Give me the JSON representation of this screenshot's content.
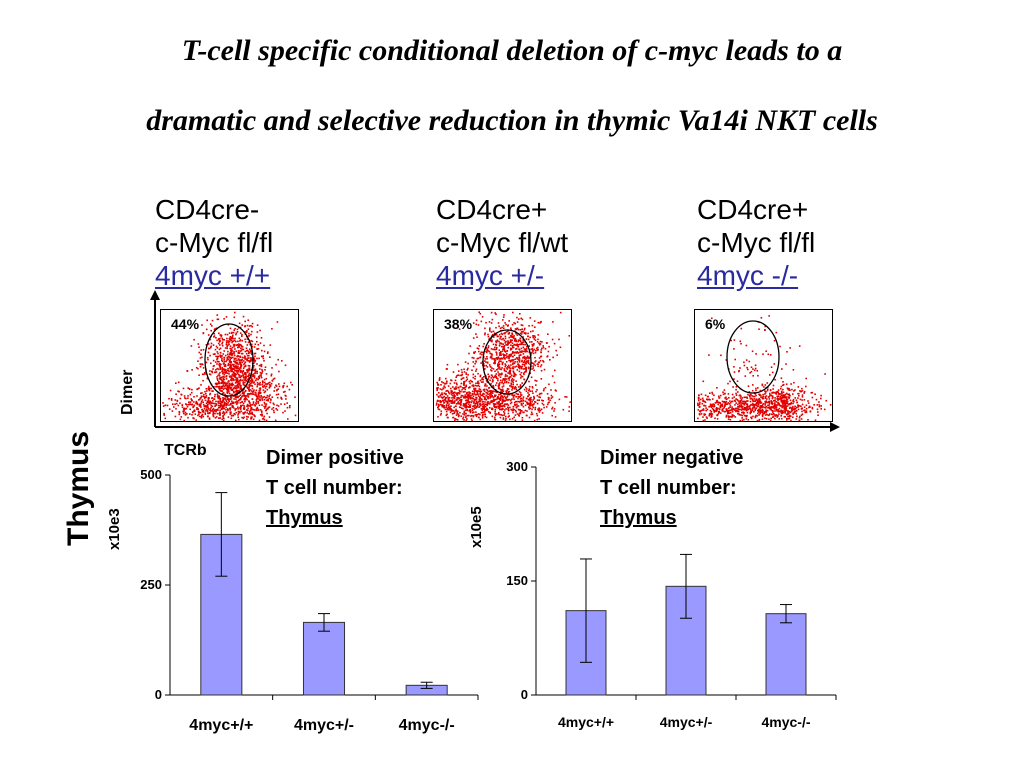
{
  "title": {
    "line1": "T-cell specific conditional deletion of c-myc leads to a",
    "line2": "dramatic and selective reduction in thymic Va14i NKT cells"
  },
  "genotypes": [
    {
      "line1": "CD4cre-",
      "line2": "c-Myc fl/fl",
      "line3": "4myc +/+"
    },
    {
      "line1": "CD4cre+",
      "line2": "c-Myc fl/wt",
      "line3": "4myc +/-"
    },
    {
      "line1": "CD4cre+",
      "line2": "c-Myc fl/fl",
      "line3": "4myc -/-"
    }
  ],
  "flow_plots": [
    {
      "percent": "44%"
    },
    {
      "percent": "38%"
    },
    {
      "percent": "6%"
    }
  ],
  "axis_labels": {
    "dimer": "Dimer",
    "tcrb": "TCRb",
    "thymus": "Thymus"
  },
  "colors": {
    "dots": "#e00000",
    "bars": "#9999ff",
    "genotype_link": "#2a2aa0"
  },
  "chart_data": [
    {
      "type": "bar",
      "title_lines": [
        "Dimer positive",
        "T cell number:"
      ],
      "title_underlined": "Thymus",
      "ylabel": "x10e3",
      "categories": [
        "4myc+/+",
        "4myc+/-",
        "4myc-/-"
      ],
      "values": [
        365,
        165,
        22
      ],
      "errors": [
        95,
        20,
        7
      ],
      "ylim": [
        0,
        500
      ],
      "yticks": [
        "0",
        "250",
        "500"
      ],
      "grid": false
    },
    {
      "type": "bar",
      "title_lines": [
        "Dimer negative",
        "T cell number:"
      ],
      "title_underlined": "Thymus",
      "ylabel": "x10e5",
      "categories": [
        "4myc+/+",
        "4myc+/-",
        "4myc-/-"
      ],
      "values": [
        111,
        143,
        107
      ],
      "errors": [
        68,
        42,
        12
      ],
      "ylim": [
        0,
        300
      ],
      "yticks": [
        "0",
        "150",
        "300"
      ],
      "grid": false
    }
  ]
}
